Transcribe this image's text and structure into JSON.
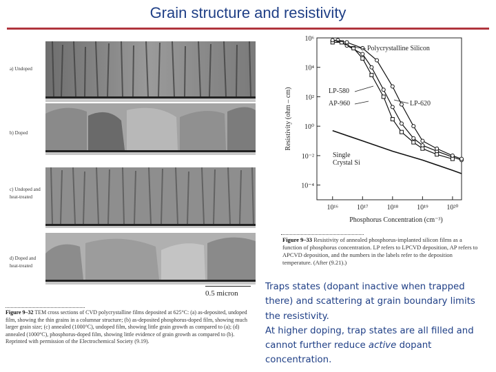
{
  "slide": {
    "title": "Grain structure and resistivity"
  },
  "tem_figure": {
    "panels": [
      {
        "label": "a) Undoped"
      },
      {
        "label": "b) Doped"
      },
      {
        "label": "c) Undoped and heat-treated"
      },
      {
        "label": "d) Doped and heat-treated"
      }
    ],
    "scale_label": "0.5 micron",
    "caption_lead": "Figure 9–32",
    "caption_text": "TEM cross sections of CVD polycrystalline films deposited at 625°C: (a) as-deposited, undoped film, showing the thin grains in a columnar structure; (b) as-deposited phosphorus-doped film, showing much larger grain size; (c) annealed (1000°C), undoped film, showing little grain growth as compared to (a); (d) annealed (1000°C), phosphorus-doped film, showing little evidence of grain growth as compared to (b). Reprinted with permission of the Electrochemical Society (9.19)."
  },
  "chart_data": {
    "type": "line",
    "xlabel": "Phosphorus Concentration (cm⁻³)",
    "ylabel": "Resistivity (ohm – cm)",
    "x_scale": "log",
    "y_scale": "log",
    "xlim": [
      3000000000000000.0,
      2e+20
    ],
    "ylim": [
      1e-05,
      1000000.0
    ],
    "x_ticks": [
      {
        "value": 1e+16,
        "label": "10¹⁶"
      },
      {
        "value": 1e+17,
        "label": "10¹⁷"
      },
      {
        "value": 1e+18,
        "label": "10¹⁸"
      },
      {
        "value": 1e+19,
        "label": "10¹⁹"
      },
      {
        "value": 1e+20,
        "label": "10²⁰"
      }
    ],
    "y_ticks": [
      {
        "value": 1000000.0,
        "label": "10⁶"
      },
      {
        "value": 10000.0,
        "label": "10⁴"
      },
      {
        "value": 100.0,
        "label": "10²"
      },
      {
        "value": 1.0,
        "label": "10⁰"
      },
      {
        "value": 0.01,
        "label": "10⁻²"
      },
      {
        "value": 0.0001,
        "label": "10⁻⁴"
      }
    ],
    "series": [
      {
        "name": "LP-580",
        "marker": "circle",
        "x": [
          1e+16,
          1.5e+16,
          3e+16,
          1e+17,
          2e+17,
          5e+17,
          1e+18,
          2e+18,
          5e+18,
          1e+19,
          3e+19,
          1e+20,
          2e+20
        ],
        "y": [
          600000.0,
          700000.0,
          300000.0,
          80000.0,
          10000.0,
          300,
          20,
          1.5,
          0.15,
          0.05,
          0.02,
          0.008,
          0.005
        ]
      },
      {
        "name": "AP-960",
        "marker": "square",
        "x": [
          1e+16,
          2e+16,
          5e+16,
          1e+17,
          2e+17,
          5e+17,
          1e+18,
          2e+18,
          5e+18,
          1e+19,
          3e+19,
          1e+20
        ],
        "y": [
          500000.0,
          500000.0,
          200000.0,
          40000.0,
          3000,
          100,
          3,
          0.4,
          0.08,
          0.03,
          0.012,
          0.006
        ]
      },
      {
        "name": "LP-620",
        "marker": "circle",
        "x": [
          1e+16,
          3e+16,
          1e+17,
          3e+17,
          1e+18,
          2e+18,
          5e+18,
          1e+19,
          3e+19,
          1e+20,
          2e+20
        ],
        "y": [
          700000.0,
          500000.0,
          200000.0,
          30000.0,
          500,
          30,
          1,
          0.1,
          0.03,
          0.01,
          0.006
        ]
      },
      {
        "name": "Single Crystal Si",
        "marker": "none",
        "x": [
          1e+16,
          1e+17,
          1e+18,
          1e+19,
          1e+20,
          2e+20
        ],
        "y": [
          0.5,
          0.1,
          0.02,
          0.005,
          0.001,
          0.0006
        ]
      }
    ],
    "annotations": [
      {
        "text": "Polycrystalline Silicon"
      },
      {
        "text": "LP-580"
      },
      {
        "text": "AP-960"
      },
      {
        "text": "LP-620"
      },
      {
        "text": "Single Crystal Si"
      }
    ]
  },
  "chart_figure": {
    "caption_lead": "Figure 9–33",
    "caption_text": "Resistivity of annealed phosphorus-implanted silicon films as a function of phosphorus concentration. LP refers to LPCVD deposition, AP refers to APCVD deposition, and the numbers in the labels refer to the deposition temperature. (After (9.21).)"
  },
  "body": {
    "paragraph1": "Traps states (dopant inactive when trapped there) and scattering at grain boundary limits the resistivity.",
    "p2_before": "At higher doping, trap states are all filled and cannot further reduce ",
    "p2_em": "active",
    "p2_after": " dopant concentration."
  }
}
